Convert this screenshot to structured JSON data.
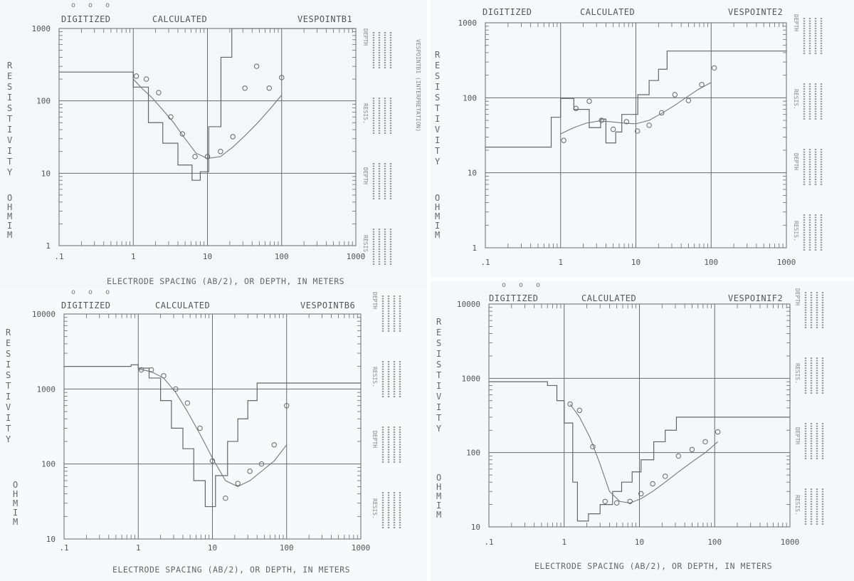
{
  "headers": {
    "digitized": "DIGITIZED",
    "calculated": "CALCULATED",
    "digitized_marks": "o o o"
  },
  "x_axis_title": "ELECTRODE SPACING (AB/2), OR DEPTH, IN METERS",
  "y_axis_title": {
    "resistivity": "RESISTIVITY",
    "unit": "OHMIM"
  },
  "side_labels": {
    "depth": "DEPTH",
    "resis": "RESIS.",
    "interp": "VESPOINTB1 (INTERPRETATION)"
  },
  "chart_data": [
    {
      "type": "line",
      "title": "VESPOINTB1",
      "x_scale": "log",
      "y_scale": "log",
      "xlim": [
        0.1,
        1000
      ],
      "ylim": [
        1,
        1000
      ],
      "x_ticks": [
        ".1",
        "1",
        "10",
        "100",
        "1000"
      ],
      "y_ticks": [
        "1",
        "10",
        "100",
        "1000"
      ],
      "digitized_x": [
        1.1,
        1.5,
        2.2,
        3.2,
        4.6,
        6.8,
        10,
        15,
        22,
        32,
        46,
        68,
        100
      ],
      "digitized_y": [
        220,
        200,
        130,
        60,
        35,
        17,
        17,
        20,
        32,
        150,
        300,
        150,
        210
      ],
      "calculated_curve_x": [
        1.0,
        1.3,
        1.8,
        2.5,
        3.5,
        5,
        7,
        10,
        15,
        22,
        32,
        46,
        68,
        100
      ],
      "calculated_curve_y": [
        200,
        150,
        110,
        75,
        50,
        30,
        19,
        16,
        17,
        23,
        33,
        48,
        75,
        120
      ],
      "layer_model": {
        "depth": [
          1.0,
          1.6,
          2.5,
          4.0,
          6.2,
          8.0,
          10.4,
          15.2,
          21.3,
          38.6
        ],
        "resistivity": [
          250,
          155,
          50,
          26,
          13,
          8,
          10.5,
          44,
          400,
          1000,
          1000
        ]
      }
    },
    {
      "type": "line",
      "title": "VESPOINTE2",
      "x_scale": "log",
      "y_scale": "log",
      "xlim": [
        0.1,
        1000
      ],
      "ylim": [
        1,
        1000
      ],
      "x_ticks": [
        ".1",
        "1",
        "10",
        "100",
        "1000"
      ],
      "y_ticks": [
        "1",
        "10",
        "100",
        "1000"
      ],
      "digitized_x": [
        1.1,
        1.6,
        2.4,
        3.5,
        5,
        7.5,
        10.5,
        15,
        22,
        33,
        50,
        75,
        110
      ],
      "digitized_y": [
        27,
        72,
        90,
        50,
        38,
        48,
        36,
        43,
        63,
        110,
        92,
        150,
        250
      ],
      "calculated_curve_x": [
        1.0,
        1.5,
        2.2,
        3.2,
        4.6,
        6.8,
        10,
        15,
        22,
        32,
        46,
        68,
        100
      ],
      "calculated_curve_y": [
        33,
        40,
        46,
        49,
        48,
        46,
        45,
        50,
        62,
        78,
        100,
        130,
        160
      ],
      "layer_model": {
        "depth": [
          0.75,
          1.0,
          1.5,
          2.4,
          3.4,
          4.0,
          5.4,
          6.5,
          10.6,
          15,
          20,
          26,
          35
        ],
        "resistivity": [
          22,
          55,
          98,
          70,
          40,
          52,
          25,
          35,
          60,
          110,
          170,
          240,
          420,
          420
        ]
      }
    },
    {
      "type": "line",
      "title": "VESPOINTB6",
      "x_scale": "log",
      "y_scale": "log",
      "xlim": [
        0.1,
        1000
      ],
      "ylim": [
        10,
        10000
      ],
      "x_ticks": [
        ".1",
        "1",
        "10",
        "100",
        "1000"
      ],
      "y_ticks": [
        "10",
        "100",
        "1000",
        "10000"
      ],
      "digitized_x": [
        1.1,
        1.5,
        2.2,
        3.2,
        4.6,
        6.8,
        10,
        15,
        22,
        32,
        46,
        68,
        100
      ],
      "digitized_y": [
        1800,
        1800,
        1500,
        1000,
        650,
        300,
        110,
        35,
        55,
        80,
        100,
        180,
        600
      ],
      "calculated_curve_x": [
        1.0,
        1.5,
        2.2,
        3.2,
        4.6,
        6.8,
        10,
        15,
        22,
        32,
        46,
        68,
        100
      ],
      "calculated_curve_y": [
        1850,
        1700,
        1400,
        900,
        500,
        250,
        120,
        60,
        50,
        60,
        80,
        110,
        180
      ],
      "layer_model": {
        "depth": [
          0.8,
          1.0,
          1.4,
          2.0,
          2.8,
          4.0,
          5.6,
          8.0,
          11.0,
          16,
          22,
          30,
          40
        ],
        "resistivity": [
          2000,
          2100,
          1900,
          1400,
          700,
          300,
          160,
          60,
          27,
          70,
          200,
          400,
          700,
          1200
        ]
      }
    },
    {
      "type": "line",
      "title": "VESPOINIF2",
      "x_scale": "log",
      "y_scale": "log",
      "xlim": [
        0.1,
        1000
      ],
      "ylim": [
        10,
        10000
      ],
      "x_ticks": [
        ".1",
        "1",
        "10",
        "100",
        "1000"
      ],
      "y_ticks": [
        "10",
        "100",
        "1000",
        "10000"
      ],
      "digitized_x": [
        1.2,
        1.6,
        2.4,
        3.5,
        5,
        7.5,
        10.5,
        15,
        22,
        33,
        50,
        75,
        110
      ],
      "digitized_y": [
        450,
        370,
        120,
        22,
        21,
        22,
        28,
        38,
        48,
        90,
        110,
        140,
        190
      ],
      "calculated_curve_x": [
        1.2,
        1.6,
        2.2,
        3.0,
        4.0,
        5.5,
        7.5,
        10.5,
        15,
        22,
        33,
        50,
        75,
        110
      ],
      "calculated_curve_y": [
        450,
        300,
        160,
        70,
        30,
        22,
        21,
        24,
        30,
        40,
        55,
        75,
        100,
        140
      ],
      "layer_model": {
        "depth": [
          0.6,
          0.8,
          1.0,
          1.3,
          1.5,
          2.1,
          3.0,
          4.4,
          5.8,
          8.0,
          10.5,
          15.5,
          22,
          31
        ],
        "resistivity": [
          900,
          800,
          500,
          250,
          40,
          12,
          15,
          20,
          30,
          40,
          55,
          80,
          140,
          200,
          300
        ]
      }
    }
  ]
}
